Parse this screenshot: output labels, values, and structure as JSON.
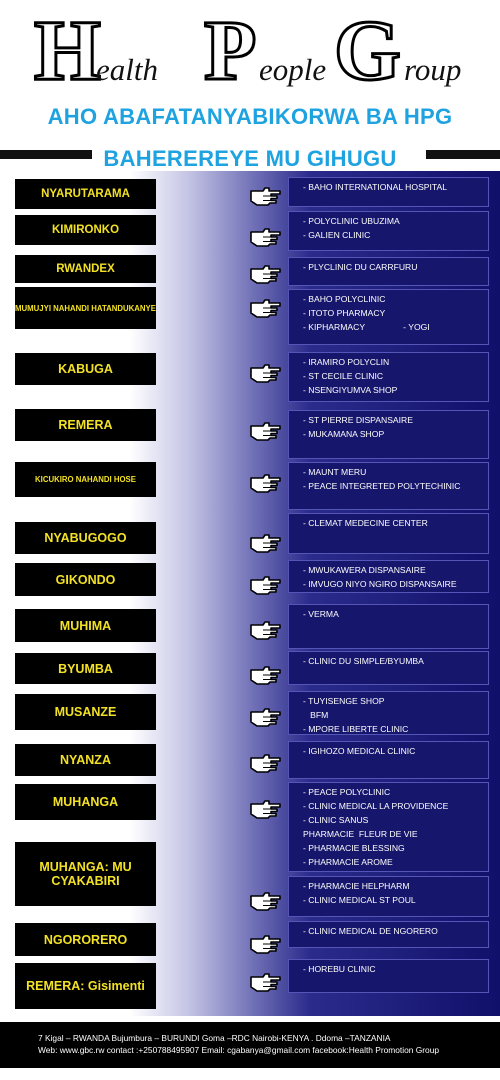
{
  "logo": {
    "h_big": "H",
    "h_rest": "ealth",
    "p_big": "P",
    "p_rest": "eople",
    "g_big": "G",
    "g_rest": "roup"
  },
  "header": {
    "line1": "AHO ABAFATANYABIKORWA BA HPG",
    "line2": "BAHEREREYE MU GIHUGU"
  },
  "locations": [
    {
      "name": "NYARUTARAMA",
      "partners": "- BAHO INTERNATIONAL HOSPITAL"
    },
    {
      "name": "KIMIRONKO",
      "partners": "- POLYCLINIC UBUZIMA\n- GALIEN CLINIC"
    },
    {
      "name": "RWANDEX",
      "partners": "- PLYCLINIC DU CARRFURU"
    },
    {
      "name": "MUMUJYI NAHANDI HATANDUKANYE",
      "partners": "- BAHO POLYCLINIC\n- ITOTO PHARMACY\n- KIPHARMACY                - YOGI"
    },
    {
      "name": "KABUGA",
      "partners": "- IRAMIRO POLYCLIN\n- ST CECILE CLINIC\n- NSENGIYUMVA SHOP"
    },
    {
      "name": "REMERA",
      "partners": "- ST PIERRE DISPANSAIRE\n- MUKAMANA SHOP"
    },
    {
      "name": "KICUKIRO NAHANDI HOSE",
      "partners": "- MAUNT MERU\n- PEACE INTEGRETED POLYTECHINIC"
    },
    {
      "name": "NYABUGOGO",
      "partners": "- CLEMAT MEDECINE CENTER"
    },
    {
      "name": "GIKONDO",
      "partners": "- MWUKAWERA DISPANSAIRE\n- IMVUGO NIYO NGIRO DISPANSAIRE"
    },
    {
      "name": "MUHIMA",
      "partners": "- VERMA"
    },
    {
      "name": "BYUMBA",
      "partners": "- CLINIC DU SIMPLE/BYUMBA"
    },
    {
      "name": "MUSANZE",
      "partners": "- TUYISENGE SHOP\n   BFM\n- MPORE LIBERTE CLINIC"
    },
    {
      "name": "NYANZA",
      "partners": "- IGIHOZO MEDICAL CLINIC"
    },
    {
      "name": "MUHANGA",
      "partners": "- PEACE POLYCLINIC\n- CLINIC MEDICAL LA PROVIDENCE\n- CLINIC SANUS\nPHARMACIE  FLEUR DE VIE\n- PHARMACIE BLESSING\n- PHARMACIE AROME"
    },
    {
      "name": "MUHANGA: MU CYAKABIRI",
      "partners": "- PHARMACIE HELPHARM\n- CLINIC MEDICAL ST POUL"
    },
    {
      "name": "NGORORERO",
      "partners": "- CLINIC MEDICAL DE NGORERO"
    },
    {
      "name": "REMERA: Gisimenti",
      "partners": "- HOREBU CLINIC"
    }
  ],
  "footer": {
    "line1": "7 Kigal – RWANDA  Bujumbura – BURUNDI  Goma –RDC  Nairobi-KENYA .  Ddoma –TANZANIA",
    "line2": "Web: www.gbc.rw  contact :+250788495907  Email: cgabanya@gmail.com  facebook:Health Promotion Group"
  }
}
